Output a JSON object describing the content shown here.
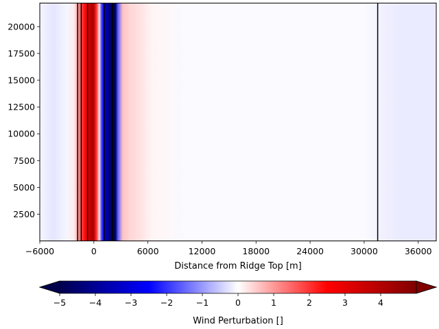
{
  "chart_data": {
    "type": "heatmap",
    "title": "",
    "xlabel": "Distance from Ridge Top [m]",
    "ylabel": "",
    "xlim": [
      -6000,
      38000
    ],
    "ylim": [
      0,
      22200
    ],
    "x_ticks": [
      -6000,
      0,
      6000,
      12000,
      18000,
      24000,
      30000,
      36000
    ],
    "x_tick_labels": [
      "−6000",
      "0",
      "6000",
      "12000",
      "18000",
      "24000",
      "30000",
      "36000"
    ],
    "y_ticks": [
      2500,
      5000,
      7500,
      10000,
      12500,
      15000,
      17500,
      20000
    ],
    "y_tick_labels": [
      "2500",
      "5000",
      "7500",
      "10000",
      "12500",
      "15000",
      "17500",
      "20000"
    ],
    "colormap": "seismic",
    "colormap_stops": [
      "#00004c",
      "#0000ff",
      "#ffffff",
      "#ff0000",
      "#800000"
    ],
    "field_profile": {
      "description_units": "wind perturbation vs distance (approximately uniform with height)",
      "x": [
        -6000,
        -4500,
        -3000,
        -2200,
        -1800,
        -1500,
        -1000,
        -600,
        -200,
        0,
        300,
        600,
        900,
        1200,
        1500,
        1800,
        2100,
        2400,
        2700,
        3200,
        4000,
        5000,
        6500,
        10000,
        20000,
        30000,
        32000,
        34000,
        38000
      ],
      "value": [
        -0.1,
        -0.25,
        -0.1,
        0.2,
        0.8,
        1.5,
        2.4,
        3.2,
        4.2,
        3.8,
        2.0,
        0.3,
        -2.0,
        -3.2,
        -3.8,
        -4.5,
        -5.0,
        -4.6,
        -1.5,
        0.6,
        0.4,
        0.3,
        0.1,
        -0.05,
        -0.05,
        -0.05,
        -0.15,
        -0.2,
        -0.2
      ]
    },
    "contour_lines_x": [
      -1800,
      -1400,
      -700,
      1150,
      2050,
      31500
    ],
    "colorbar": {
      "label": "Wind Perturbation []",
      "vmin": -5,
      "vmax": 5,
      "extend": "both",
      "ticks": [
        -5,
        -4,
        -3,
        -2,
        -1,
        0,
        1,
        2,
        3,
        4
      ],
      "tick_labels": [
        "−5",
        "−4",
        "−3",
        "−2",
        "−1",
        "0",
        "1",
        "2",
        "3",
        "4"
      ]
    }
  }
}
